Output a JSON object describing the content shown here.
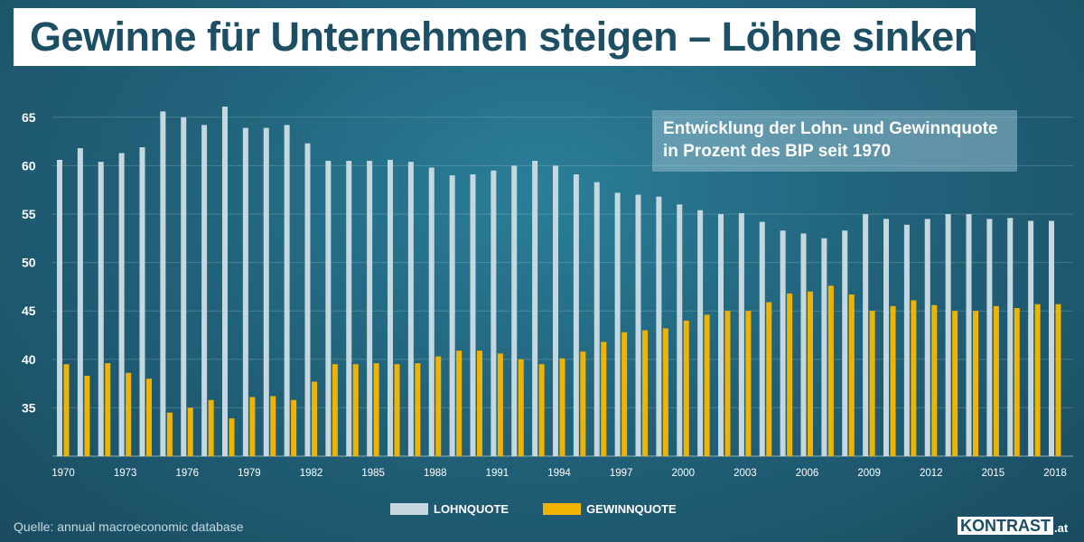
{
  "title": "Gewinne für Unternehmen steigen – Löhne sinken",
  "subtitle_line1": "Entwicklung der Lohn- und Gewinnquote",
  "subtitle_line2": "in Prozent des BIP seit 1970",
  "source": "Quelle: annual macroeconomic database",
  "logo": {
    "name": "KONTRAST",
    "suffix": ".at"
  },
  "colors": {
    "lohnquote": "#c5d8e0",
    "gewinnquote": "#f0b400",
    "title": "#1d4f64"
  },
  "chart_data": {
    "type": "bar",
    "title": "Entwicklung der Lohn- und Gewinnquote in Prozent des BIP seit 1970",
    "ylim": [
      30,
      67
    ],
    "yticks": [
      35,
      40,
      45,
      50,
      55,
      60,
      65
    ],
    "grid": true,
    "legend": "bottom",
    "x": [
      1970,
      1971,
      1972,
      1973,
      1974,
      1975,
      1976,
      1977,
      1978,
      1979,
      1980,
      1981,
      1982,
      1983,
      1984,
      1985,
      1986,
      1987,
      1988,
      1989,
      1990,
      1991,
      1992,
      1993,
      1994,
      1995,
      1996,
      1997,
      1998,
      1999,
      2000,
      2001,
      2002,
      2003,
      2004,
      2005,
      2006,
      2007,
      2008,
      2009,
      2010,
      2011,
      2012,
      2013,
      2014,
      2015,
      2016,
      2017,
      2018
    ],
    "xtick_labels": [
      "1970",
      "1973",
      "1976",
      "1979",
      "1982",
      "1985",
      "1988",
      "1991",
      "1994",
      "1997",
      "2000",
      "2003",
      "2006",
      "2009",
      "2012",
      "2015",
      "2018"
    ],
    "series": [
      {
        "name": "LOHNQUOTE",
        "values": [
          60.6,
          61.8,
          60.4,
          61.3,
          61.9,
          65.6,
          65.0,
          64.2,
          66.1,
          63.9,
          63.9,
          64.2,
          62.3,
          60.5,
          60.5,
          60.5,
          60.6,
          60.4,
          59.8,
          59.0,
          59.1,
          59.5,
          60.0,
          60.5,
          60.0,
          59.1,
          58.3,
          57.2,
          57.0,
          56.8,
          56.0,
          55.4,
          55.0,
          55.1,
          54.2,
          53.3,
          53.0,
          52.5,
          53.3,
          55.0,
          54.5,
          53.9,
          54.5,
          55.0,
          55.0,
          54.5,
          54.6,
          54.3,
          54.3
        ]
      },
      {
        "name": "GEWINNQUOTE",
        "values": [
          39.5,
          38.3,
          39.6,
          38.6,
          38.0,
          34.5,
          35.0,
          35.8,
          33.9,
          36.1,
          36.2,
          35.8,
          37.7,
          39.5,
          39.5,
          39.6,
          39.5,
          39.6,
          40.3,
          40.9,
          40.9,
          40.6,
          40.0,
          39.5,
          40.1,
          40.8,
          41.8,
          42.8,
          43.0,
          43.2,
          44.0,
          44.6,
          45.0,
          45.0,
          45.9,
          46.8,
          47.0,
          47.6,
          46.7,
          45.0,
          45.5,
          46.1,
          45.6,
          45.0,
          45.0,
          45.5,
          45.3,
          45.7,
          45.7
        ]
      }
    ]
  }
}
